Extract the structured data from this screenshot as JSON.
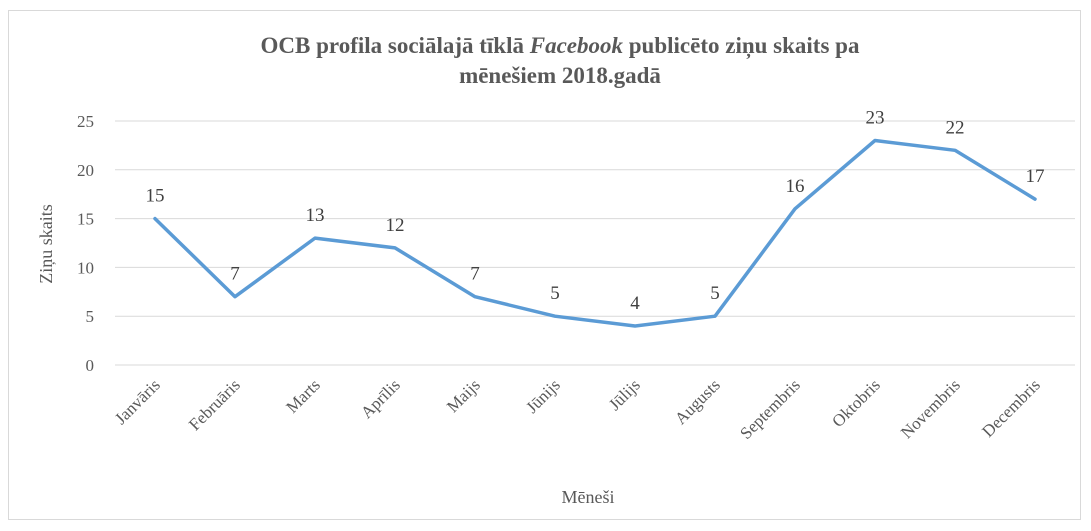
{
  "chart_data": {
    "type": "line",
    "title_part1": "OCB profila sociālajā tīklā ",
    "title_italic": "Facebook",
    "title_part2": " publicēto ziņu skaits pa",
    "title_line2": "mēnešiem 2018.gadā",
    "xlabel": "Mēneši",
    "ylabel": "Ziņu skaits",
    "categories": [
      "Janvāris",
      "Februāris",
      "Marts",
      "Aprīlis",
      "Maijs",
      "Jūnijs",
      "Jūlijs",
      "Augusts",
      "Septembris",
      "Oktobris",
      "Novembris",
      "Decembris"
    ],
    "series": [
      {
        "values": [
          15,
          7,
          13,
          12,
          7,
          5,
          4,
          5,
          16,
          23,
          22,
          17
        ]
      }
    ],
    "ylim": [
      0,
      25
    ],
    "yticks": [
      "0",
      "5",
      "10",
      "15",
      "20",
      "25"
    ],
    "grid": true,
    "legend": "none",
    "colors": {
      "series": "#5b9bd5",
      "grid": "#d9d9d9"
    }
  }
}
